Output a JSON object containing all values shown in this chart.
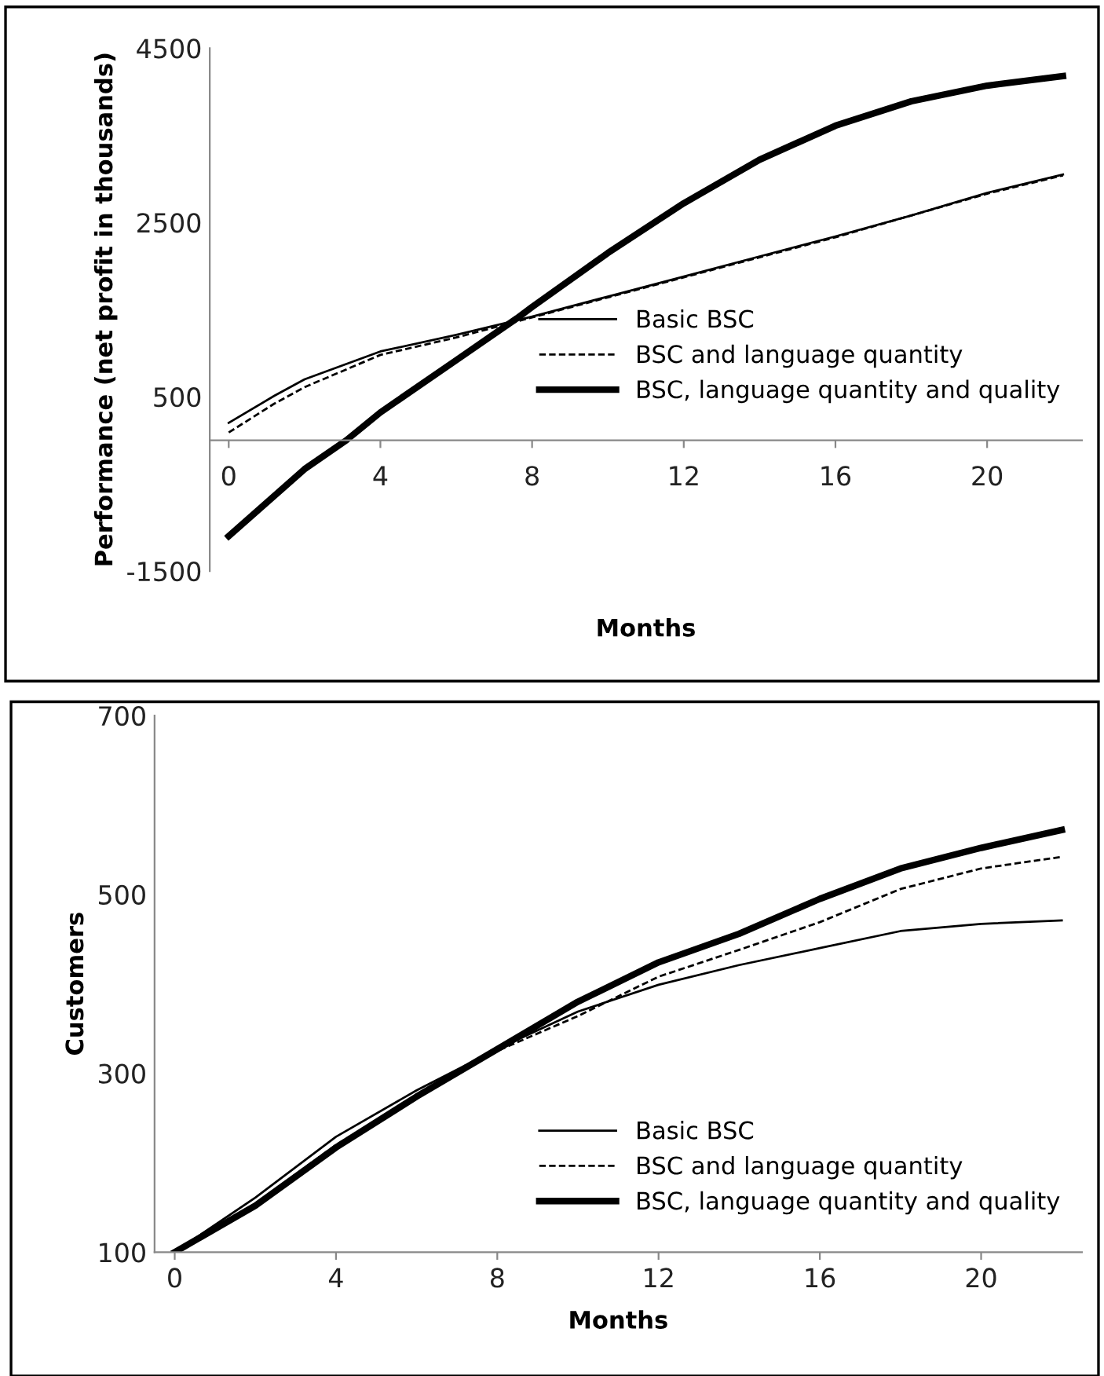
{
  "chart_data": [
    {
      "type": "line",
      "xlabel": "Months",
      "ylabel": "Performance (net profit in thousands)",
      "xlim": [
        -0.5,
        22.5
      ],
      "xticks": [
        0,
        4,
        8,
        12,
        16,
        20
      ],
      "ylim": [
        -1500,
        4500
      ],
      "yticks": [
        -1500,
        500,
        2500,
        4500
      ],
      "grid": false,
      "legend": "bottom right",
      "marker": "none",
      "series": [
        {
          "name": "Basic BSC",
          "color": "#000000",
          "line_style": "solid",
          "x": [
            0,
            1.2,
            2,
            4,
            6,
            8,
            10,
            12,
            14,
            16,
            18,
            20,
            22
          ],
          "values": [
            200,
            510,
            700,
            1020,
            1210,
            1420,
            1650,
            1880,
            2110,
            2340,
            2580,
            2840,
            3050
          ]
        },
        {
          "name": "BSC and language quantity",
          "color": "#000000",
          "line_style": "dashed",
          "x": [
            0,
            1.2,
            2,
            4,
            6,
            8,
            10,
            12,
            14,
            16,
            18,
            20,
            22
          ],
          "values": [
            90,
            420,
            610,
            980,
            1180,
            1410,
            1640,
            1870,
            2100,
            2330,
            2580,
            2830,
            3040
          ]
        },
        {
          "name": "BSC, language quantity and quality",
          "color": "#000000",
          "line_style": "solid",
          "x": [
            0,
            2,
            3.1,
            4,
            6,
            7.6,
            8,
            10,
            12,
            14,
            16,
            18,
            20,
            22
          ],
          "values": [
            -1100,
            -330,
            0,
            320,
            920,
            1400,
            1530,
            2150,
            2720,
            3220,
            3610,
            3890,
            4070,
            4180
          ]
        }
      ]
    },
    {
      "type": "line",
      "xlabel": "Months",
      "ylabel": "Customers",
      "xlim": [
        -0.5,
        22.5
      ],
      "xticks": [
        0,
        4,
        8,
        12,
        16,
        20
      ],
      "ylim": [
        100,
        700
      ],
      "yticks": [
        100,
        300,
        500,
        700
      ],
      "grid": false,
      "legend": "bottom right",
      "marker": "none",
      "series": [
        {
          "name": "Basic BSC",
          "color": "#000000",
          "line_style": "solid",
          "x": [
            0,
            2,
            4,
            6,
            8,
            10,
            12,
            14,
            16,
            18,
            20,
            22
          ],
          "values": [
            100,
            161,
            229,
            281,
            327,
            369,
            399,
            421,
            440,
            459,
            467,
            471
          ]
        },
        {
          "name": "BSC and language quantity",
          "color": "#000000",
          "line_style": "dashed",
          "x": [
            0,
            2,
            4,
            6,
            8,
            10,
            12,
            14,
            16,
            18,
            20,
            22
          ],
          "values": [
            100,
            154,
            220,
            274,
            325,
            364,
            408,
            438,
            469,
            506,
            529,
            542
          ]
        },
        {
          "name": "BSC, language quantity and quality",
          "color": "#000000",
          "line_style": "solid",
          "x": [
            0,
            2,
            4,
            6,
            8,
            10,
            12,
            14,
            16,
            18,
            20,
            22
          ],
          "values": [
            100,
            152,
            217,
            274,
            327,
            380,
            424,
            456,
            495,
            529,
            552,
            572
          ]
        }
      ]
    }
  ]
}
